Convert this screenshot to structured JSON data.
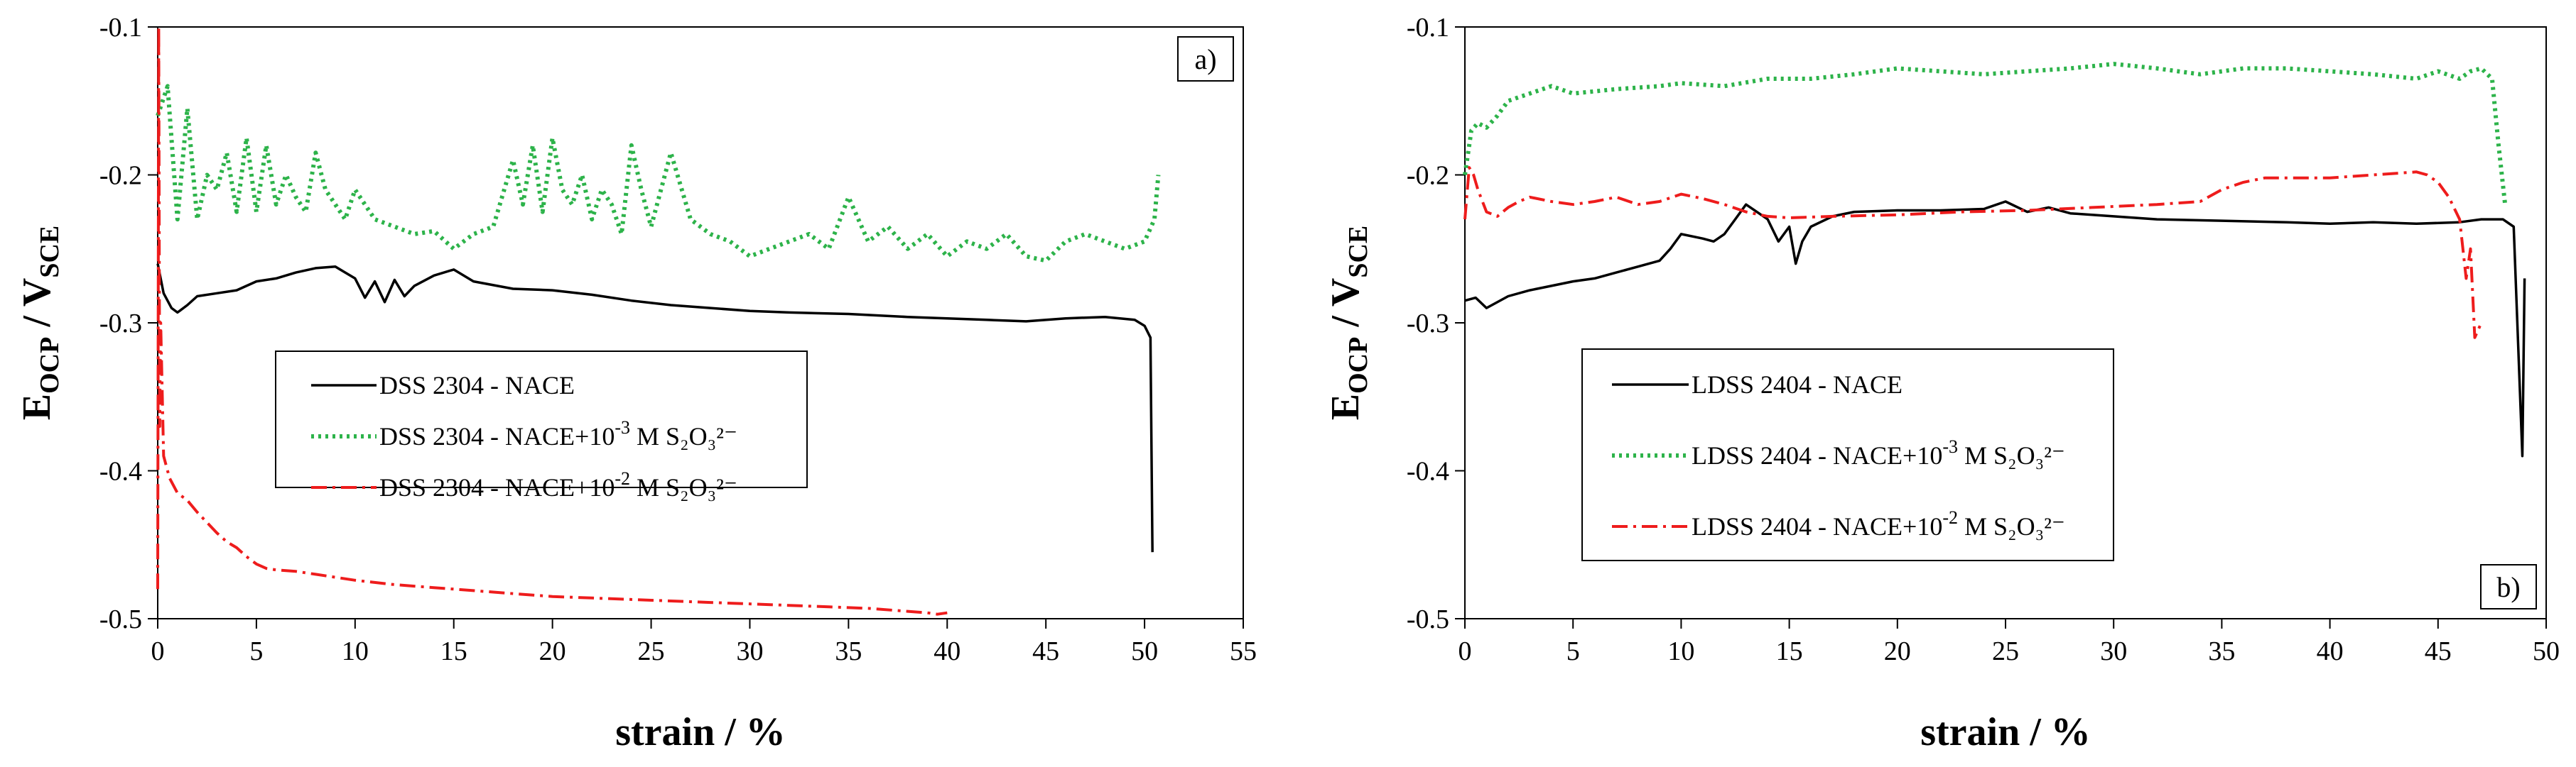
{
  "chart_data": [
    {
      "type": "line",
      "panel_label": "a)",
      "xlabel": "strain / %",
      "ylabel": {
        "base": "E",
        "sub1": "OCP",
        "sep": " / V",
        "sub2": "SCE"
      },
      "xlim": [
        0,
        55
      ],
      "ylim": [
        -0.5,
        -0.1
      ],
      "x_ticks": [
        "0",
        "5",
        "10",
        "15",
        "20",
        "25",
        "30",
        "35",
        "40",
        "45",
        "50",
        "55"
      ],
      "y_ticks": [
        "-0.1",
        "-0.2",
        "-0.3",
        "-0.4",
        "-0.5"
      ],
      "legend_position": "lower-left",
      "series": [
        {
          "name": "DSS 2304 - NACE",
          "legend": {
            "main": "DSS 2304 - NACE",
            "exp": "",
            "tail": ""
          },
          "color": "#000000",
          "style": "solid",
          "x": [
            0,
            0.3,
            0.7,
            1,
            1.5,
            2,
            3,
            4,
            5,
            6,
            7,
            8,
            9,
            10,
            10.5,
            11,
            11.5,
            12,
            12.5,
            13,
            14,
            15,
            16,
            18,
            20,
            22,
            24,
            26,
            28,
            30,
            32,
            35,
            38,
            40,
            42,
            44,
            46,
            48,
            49.5,
            50,
            50.3,
            50.4
          ],
          "y": [
            -0.26,
            -0.28,
            -0.29,
            -0.293,
            -0.288,
            -0.282,
            -0.28,
            -0.278,
            -0.272,
            -0.27,
            -0.266,
            -0.263,
            -0.262,
            -0.27,
            -0.283,
            -0.272,
            -0.286,
            -0.271,
            -0.282,
            -0.275,
            -0.268,
            -0.264,
            -0.272,
            -0.277,
            -0.278,
            -0.281,
            -0.285,
            -0.288,
            -0.29,
            -0.292,
            -0.293,
            -0.294,
            -0.296,
            -0.297,
            -0.298,
            -0.299,
            -0.297,
            -0.296,
            -0.298,
            -0.302,
            -0.31,
            -0.455
          ]
        },
        {
          "name": "DSS 2304 - NACE+10^-3 M S2O3^2-",
          "legend": {
            "main": "DSS 2304 - NACE+10",
            "exp": "-3",
            "tail": " M  S₂O₃²⁻"
          },
          "color": "#2DB34A",
          "style": "dotted",
          "x": [
            0,
            0.5,
            1,
            1.5,
            2,
            2.5,
            3,
            3.5,
            4,
            4.5,
            5,
            5.5,
            6,
            6.5,
            7,
            7.5,
            8,
            8.5,
            9,
            9.5,
            10,
            11,
            12,
            13,
            14,
            15,
            16,
            17,
            18,
            18.5,
            19,
            19.5,
            20,
            20.5,
            21,
            21.5,
            22,
            22.5,
            23,
            23.5,
            24,
            24.5,
            25,
            26,
            27,
            28,
            29,
            30,
            31,
            32,
            33,
            34,
            35,
            36,
            37,
            38,
            39,
            40,
            41,
            42,
            43,
            44,
            45,
            46,
            47,
            48,
            49,
            50,
            50.5,
            50.7
          ],
          "y": [
            -0.16,
            -0.14,
            -0.23,
            -0.155,
            -0.23,
            -0.2,
            -0.21,
            -0.185,
            -0.225,
            -0.175,
            -0.225,
            -0.18,
            -0.22,
            -0.2,
            -0.215,
            -0.225,
            -0.185,
            -0.21,
            -0.22,
            -0.23,
            -0.21,
            -0.23,
            -0.235,
            -0.24,
            -0.238,
            -0.25,
            -0.24,
            -0.235,
            -0.19,
            -0.22,
            -0.18,
            -0.225,
            -0.175,
            -0.21,
            -0.22,
            -0.2,
            -0.23,
            -0.21,
            -0.22,
            -0.24,
            -0.18,
            -0.21,
            -0.235,
            -0.185,
            -0.23,
            -0.24,
            -0.245,
            -0.255,
            -0.25,
            -0.245,
            -0.24,
            -0.25,
            -0.215,
            -0.245,
            -0.235,
            -0.25,
            -0.24,
            -0.255,
            -0.245,
            -0.25,
            -0.24,
            -0.255,
            -0.258,
            -0.245,
            -0.24,
            -0.245,
            -0.25,
            -0.245,
            -0.23,
            -0.2
          ]
        },
        {
          "name": "DSS 2304 - NACE+10^-2 M S2O3^2-",
          "legend": {
            "main": "DSS 2304 - NACE+10",
            "exp": "-2",
            "tail": " M  S₂O₃²⁻"
          },
          "color": "#EE1C1C",
          "style": "dashdot",
          "x": [
            0,
            0.05,
            0.1,
            0.15,
            0.3,
            0.6,
            1,
            1.5,
            2,
            2.5,
            3,
            3.5,
            4,
            4.5,
            5,
            5.5,
            6,
            7,
            8,
            9,
            10,
            12,
            14,
            16,
            18,
            20,
            22,
            24,
            26,
            28,
            30,
            32,
            34,
            36,
            38,
            39,
            39.5,
            40
          ],
          "y": [
            -0.48,
            -0.1,
            -0.37,
            -0.3,
            -0.39,
            -0.405,
            -0.415,
            -0.42,
            -0.428,
            -0.435,
            -0.442,
            -0.448,
            -0.452,
            -0.458,
            -0.463,
            -0.466,
            -0.467,
            -0.468,
            -0.47,
            -0.472,
            -0.474,
            -0.477,
            -0.479,
            -0.481,
            -0.483,
            -0.485,
            -0.486,
            -0.487,
            -0.488,
            -0.489,
            -0.49,
            -0.491,
            -0.492,
            -0.493,
            -0.495,
            -0.496,
            -0.497,
            -0.496
          ]
        }
      ]
    },
    {
      "type": "line",
      "panel_label": "b)",
      "xlabel": "strain / %",
      "ylabel": {
        "base": "E",
        "sub1": "OCP",
        "sep": " / V",
        "sub2": "SCE"
      },
      "xlim": [
        0,
        50
      ],
      "ylim": [
        -0.5,
        -0.1
      ],
      "x_ticks": [
        "0",
        "5",
        "10",
        "15",
        "20",
        "25",
        "30",
        "35",
        "40",
        "45",
        "50"
      ],
      "y_ticks": [
        "-0.1",
        "-0.2",
        "-0.3",
        "-0.4",
        "-0.5"
      ],
      "legend_position": "lower-left",
      "series": [
        {
          "name": "LDSS 2404 - NACE",
          "legend": {
            "main": "LDSS 2404 - NACE",
            "exp": "",
            "tail": ""
          },
          "color": "#000000",
          "style": "solid",
          "x": [
            0,
            0.5,
            1,
            2,
            3,
            4,
            5,
            6,
            7,
            8,
            9,
            9.5,
            10,
            11,
            11.5,
            12,
            12.5,
            13,
            13.5,
            14,
            14.5,
            15,
            15.3,
            15.6,
            16,
            17,
            18,
            20,
            22,
            24,
            25,
            26,
            27,
            28,
            30,
            32,
            35,
            38,
            40,
            42,
            44,
            46,
            47,
            48,
            48.5,
            48.9,
            49
          ],
          "y": [
            -0.285,
            -0.283,
            -0.29,
            -0.282,
            -0.278,
            -0.275,
            -0.272,
            -0.27,
            -0.266,
            -0.262,
            -0.258,
            -0.25,
            -0.24,
            -0.243,
            -0.245,
            -0.24,
            -0.23,
            -0.22,
            -0.225,
            -0.23,
            -0.245,
            -0.235,
            -0.26,
            -0.245,
            -0.235,
            -0.228,
            -0.225,
            -0.224,
            -0.224,
            -0.223,
            -0.218,
            -0.225,
            -0.222,
            -0.226,
            -0.228,
            -0.23,
            -0.231,
            -0.232,
            -0.233,
            -0.232,
            -0.233,
            -0.232,
            -0.23,
            -0.23,
            -0.235,
            -0.39,
            -0.27
          ]
        },
        {
          "name": "LDSS 2404 - NACE+10^-3 M S2O3^2-",
          "legend": {
            "main": "LDSS 2404 - NACE+10",
            "exp": "-3",
            "tail": " M  S₂O₃²⁻"
          },
          "color": "#2DB34A",
          "style": "dotted",
          "x": [
            0,
            0.3,
            0.6,
            1,
            1.5,
            2,
            3,
            4,
            5,
            7,
            9,
            10,
            12,
            14,
            16,
            18,
            20,
            22,
            24,
            26,
            28,
            30,
            32,
            34,
            36,
            38,
            40,
            42,
            44,
            45,
            46,
            46.5,
            47,
            47.5,
            47.8,
            48.1
          ],
          "y": [
            -0.2,
            -0.17,
            -0.165,
            -0.168,
            -0.16,
            -0.15,
            -0.145,
            -0.14,
            -0.145,
            -0.142,
            -0.14,
            -0.138,
            -0.14,
            -0.135,
            -0.135,
            -0.132,
            -0.128,
            -0.13,
            -0.132,
            -0.13,
            -0.128,
            -0.125,
            -0.128,
            -0.132,
            -0.128,
            -0.128,
            -0.13,
            -0.132,
            -0.135,
            -0.13,
            -0.135,
            -0.13,
            -0.128,
            -0.135,
            -0.18,
            -0.22
          ]
        },
        {
          "name": "LDSS 2404 - NACE+10^-2 M S2O3^2-",
          "legend": {
            "main": "LDSS 2404 - NACE+10",
            "exp": "-2",
            "tail": " M  S₂O₃²⁻"
          },
          "color": "#EE1C1C",
          "style": "dashdot",
          "x": [
            0,
            0.2,
            0.4,
            0.6,
            1,
            1.5,
            2,
            2.5,
            3,
            4,
            5,
            6,
            7,
            8,
            9,
            10,
            11,
            12,
            13,
            14,
            15,
            17,
            20,
            23,
            26,
            29,
            32,
            34,
            35,
            36,
            37,
            38,
            40,
            42,
            44,
            44.5,
            45,
            45.5,
            46,
            46.3,
            46.5,
            46.7,
            47
          ],
          "y": [
            -0.23,
            -0.195,
            -0.2,
            -0.21,
            -0.225,
            -0.228,
            -0.222,
            -0.218,
            -0.215,
            -0.218,
            -0.22,
            -0.218,
            -0.215,
            -0.22,
            -0.218,
            -0.213,
            -0.216,
            -0.22,
            -0.225,
            -0.228,
            -0.229,
            -0.228,
            -0.227,
            -0.225,
            -0.224,
            -0.222,
            -0.22,
            -0.218,
            -0.21,
            -0.205,
            -0.202,
            -0.202,
            -0.202,
            -0.2,
            -0.198,
            -0.2,
            -0.205,
            -0.215,
            -0.23,
            -0.27,
            -0.25,
            -0.31,
            -0.3
          ]
        }
      ]
    }
  ]
}
